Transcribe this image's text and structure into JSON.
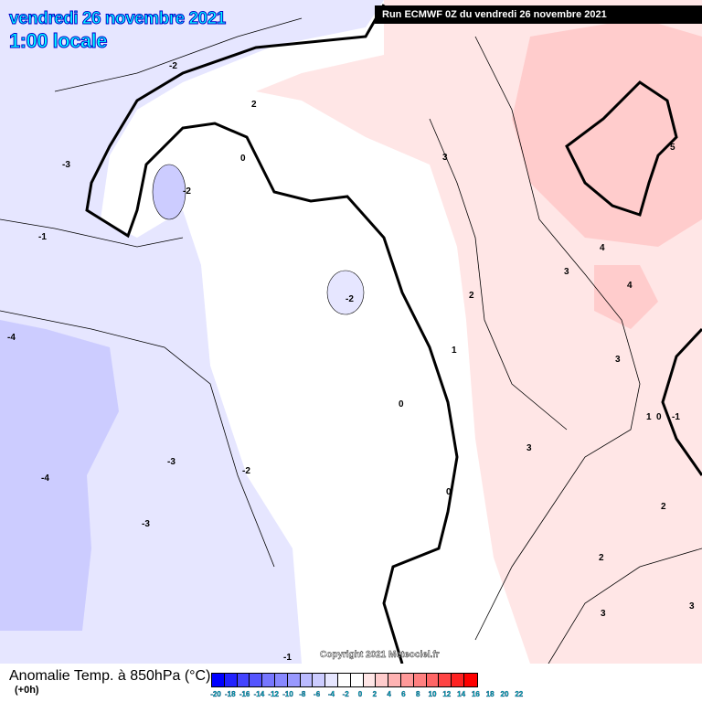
{
  "header": {
    "date": "vendredi 26 novembre 2021",
    "time": "1:00 locale",
    "run": "Run ECMWF 0Z du vendredi 26 novembre 2021"
  },
  "copyright": "Copyright 2021 Meteociel.fr",
  "legend": {
    "title": "Anomalie Temp. à 850hPa (°C)",
    "lead": "(+0h)",
    "ticks": [
      "-20",
      "-18",
      "-16",
      "-14",
      "-12",
      "-10",
      "-8",
      "-6",
      "-4",
      "-2",
      "0",
      "2",
      "4",
      "6",
      "8",
      "10",
      "12",
      "14",
      "16",
      "18",
      "20",
      "22"
    ],
    "colors": [
      "#0000ff",
      "#2222ff",
      "#4444ff",
      "#5555ff",
      "#7777ff",
      "#8888ff",
      "#9999ff",
      "#bbbbff",
      "#ccccff",
      "#e6e6ff",
      "#ffffff",
      "#ffffff",
      "#ffe6e6",
      "#ffcccc",
      "#ffb3b3",
      "#ff9999",
      "#ff8080",
      "#ff6666",
      "#ff4444",
      "#ff2222",
      "#ff0000"
    ]
  },
  "map": {
    "colors": {
      "cold_light": "#e6e6ff",
      "cold": "#ccccff",
      "neutral": "#ffffff",
      "warm_light": "#ffe6e6",
      "warm": "#ffcccc"
    },
    "contour_labels": [
      {
        "text": "-2",
        "lon_hint": "alps-west"
      },
      {
        "text": "-3",
        "lon_hint": "france"
      },
      {
        "text": "-1",
        "lon_hint": "france-south"
      },
      {
        "text": "-4",
        "lon_hint": "west"
      },
      {
        "text": "-2",
        "lon_hint": "sardinia"
      },
      {
        "text": "-3",
        "lon_hint": "sardinia-west"
      },
      {
        "text": "-4",
        "lon_hint": "southwest"
      },
      {
        "text": "-3",
        "lon_hint": "south"
      },
      {
        "text": "-2",
        "lon_hint": "tyrrhenian"
      },
      {
        "text": "0",
        "lon_hint": "po"
      },
      {
        "text": "-2",
        "lon_hint": "apennines"
      },
      {
        "text": "0",
        "lon_hint": "lazio"
      },
      {
        "text": "0",
        "lon_hint": "calabria"
      },
      {
        "text": "1",
        "lon_hint": "adriatic"
      },
      {
        "text": "2",
        "lon_hint": "adriatic-east"
      },
      {
        "text": "3",
        "lon_hint": "croatia"
      },
      {
        "text": "3",
        "lon_hint": "balkans"
      },
      {
        "text": "4",
        "lon_hint": "bosnia"
      },
      {
        "text": "4",
        "lon_hint": "montenegro"
      },
      {
        "text": "5",
        "lon_hint": "hungary"
      },
      {
        "text": "3",
        "lon_hint": "albania"
      },
      {
        "text": "3",
        "lon_hint": "puglia"
      },
      {
        "text": "1",
        "lon_hint": "greece"
      },
      {
        "text": "0",
        "lon_hint": "greece"
      },
      {
        "text": "-1",
        "lon_hint": "greece"
      },
      {
        "text": "2",
        "lon_hint": "ionian"
      },
      {
        "text": "2",
        "lon_hint": "ionian-south"
      },
      {
        "text": "3",
        "lon_hint": "south-east"
      },
      {
        "text": "3",
        "lon_hint": "far-south-east"
      },
      {
        "text": "-1",
        "lon_hint": "south-center"
      },
      {
        "text": "2",
        "lon_hint": "north"
      }
    ]
  }
}
